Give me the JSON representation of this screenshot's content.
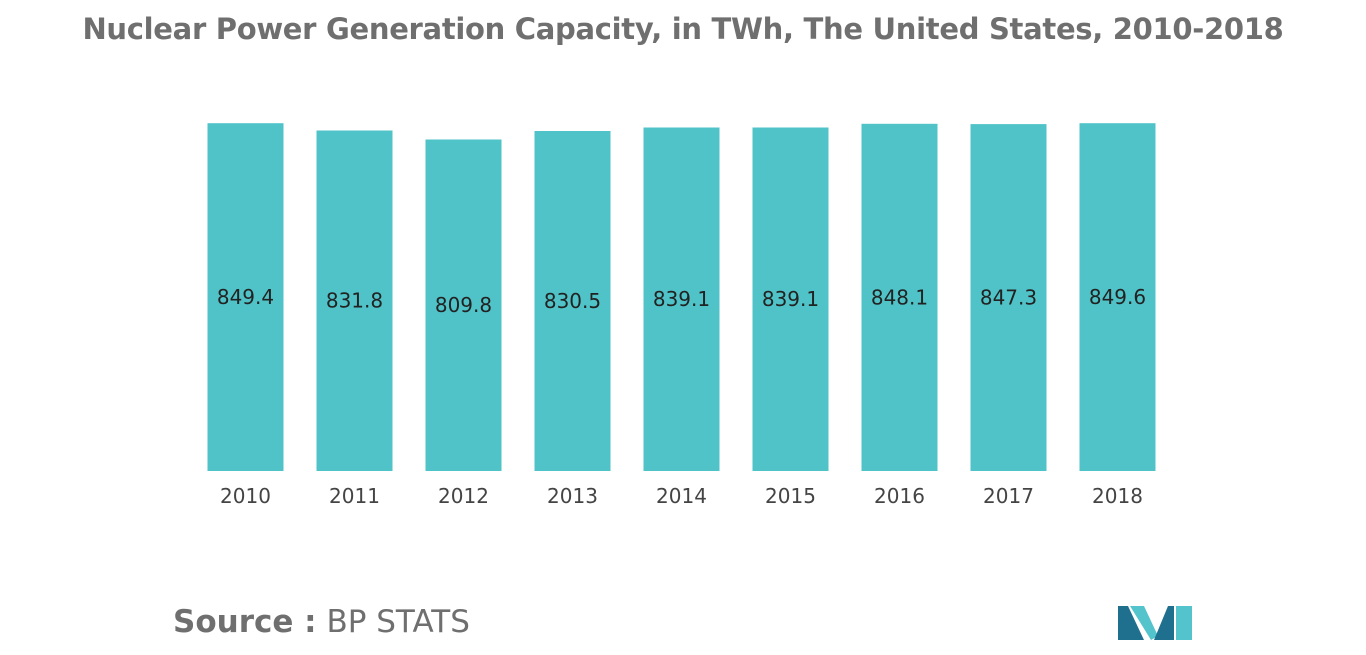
{
  "colors": {
    "bar": "#50c3c8",
    "title": "#6f6f6f",
    "logo_dark": "#1f6f8f",
    "logo_light": "#53c4cc"
  },
  "chart_data": {
    "type": "bar",
    "title": "Nuclear Power Generation Capacity, in TWh, The United States, 2010-2018",
    "xlabel": "",
    "ylabel": "",
    "categories": [
      "2010",
      "2011",
      "2012",
      "2013",
      "2014",
      "2015",
      "2016",
      "2017",
      "2018"
    ],
    "values": [
      849.4,
      831.8,
      809.8,
      830.5,
      839.1,
      839.1,
      848.1,
      847.3,
      849.6
    ],
    "value_labels": [
      "849.4",
      "831.8",
      "809.8",
      "830.5",
      "839.1",
      "839.1",
      "848.1",
      "847.3",
      "849.6"
    ],
    "ylim": [
      0,
      850
    ],
    "grid": false,
    "legend": "none"
  },
  "footer": {
    "source_label": "Source :",
    "source_value": "BP STATS"
  },
  "logo": {
    "icon": "mordor-intelligence-logo-icon"
  }
}
